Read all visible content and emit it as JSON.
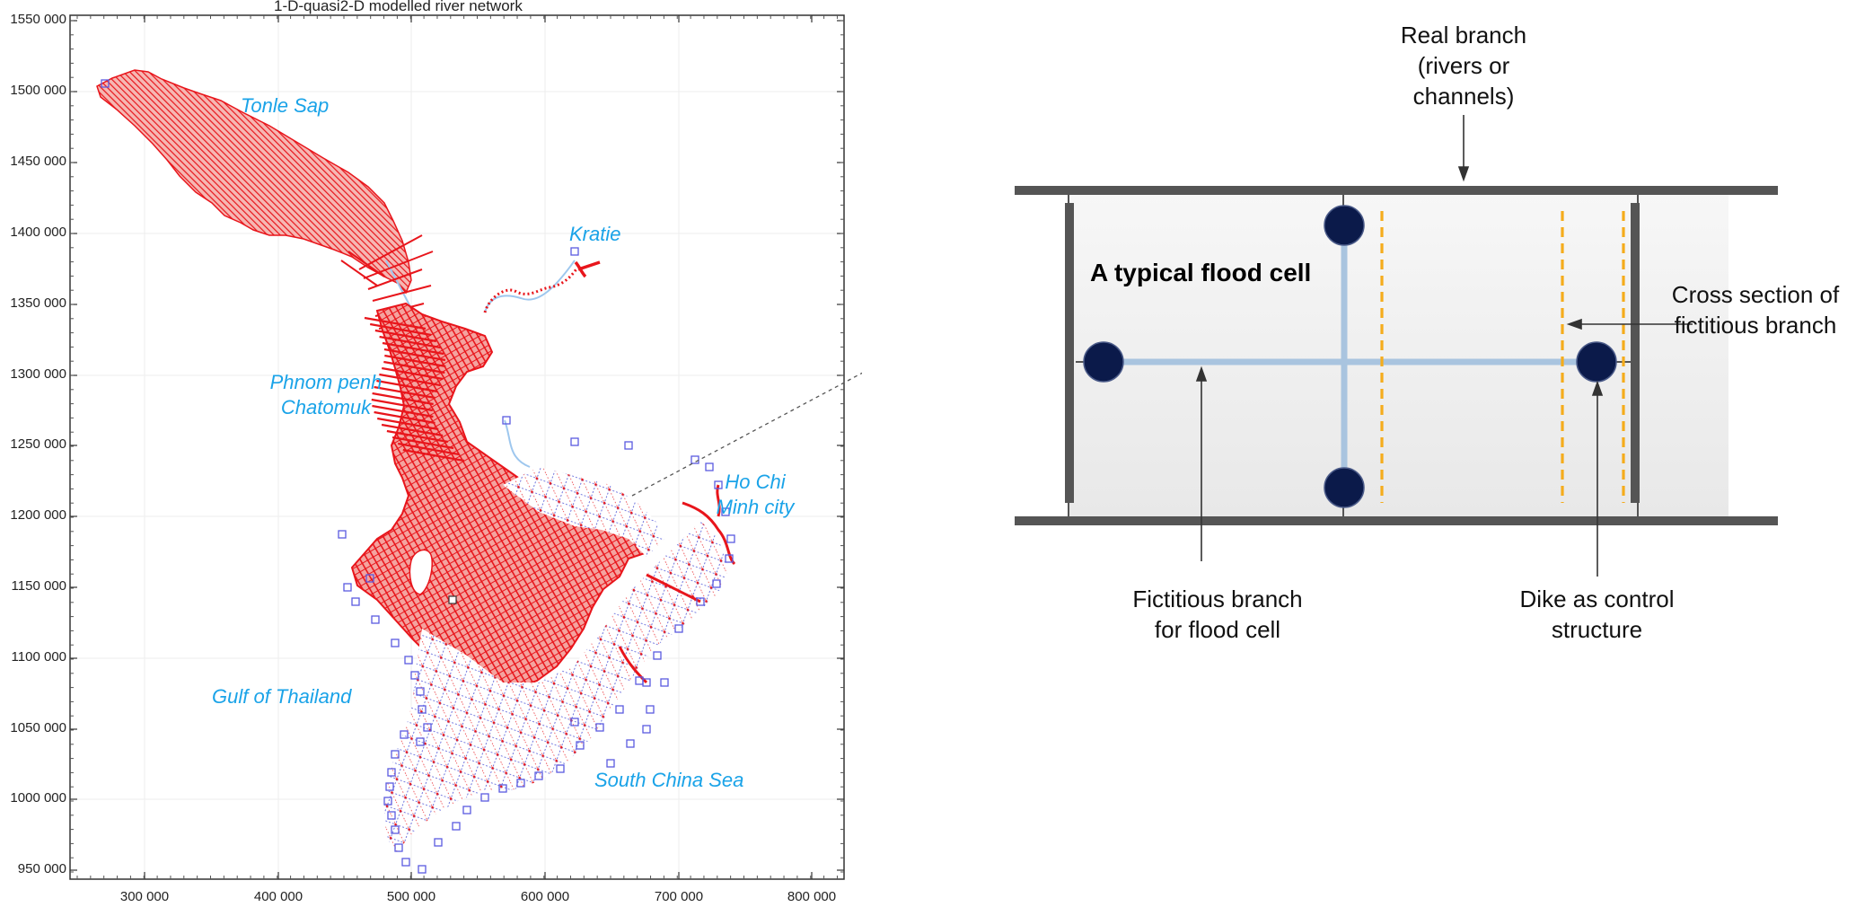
{
  "map": {
    "title": "1-D-quasi2-D modelled river network",
    "y_ticks": [
      "1550 000",
      "1500 000",
      "1450 000",
      "1400 000",
      "1350 000",
      "1300 000",
      "1250 000",
      "1200 000",
      "1150 000",
      "1100 000",
      "1050 000",
      "1000 000",
      "950 000"
    ],
    "x_ticks": [
      "300 000",
      "400 000",
      "500 000",
      "600 000",
      "700 000",
      "800 000"
    ],
    "places": {
      "tonle_sap": "Tonle Sap",
      "kratie": "Kratie",
      "phnom_penh_1": "Phnom penh",
      "phnom_penh_2": "Chatomuk",
      "ho_chi_minh_1": "Ho Chi",
      "ho_chi_minh_2": "Minh city",
      "gulf": "Gulf of Thailand",
      "scs": "South China Sea"
    },
    "colors": {
      "network": "#e8151b",
      "fictitious": "#4b52d6",
      "river": "#9ec7ee",
      "labels": "#1aa3e8"
    }
  },
  "diagram": {
    "real_branch": [
      "Real branch",
      "(rivers or",
      "channels)"
    ],
    "flood_cell_title": "A typical flood cell",
    "cross_section": [
      "Cross section of",
      "fictitious branch"
    ],
    "fictitious_branch": [
      "Fictitious branch",
      "for flood cell"
    ],
    "dike": [
      "Dike as control",
      "structure"
    ],
    "colors": {
      "node": "#0b1a4a",
      "branch": "#a9c4df",
      "dike_line": "#f5ac1c",
      "bank": "#555555"
    }
  }
}
